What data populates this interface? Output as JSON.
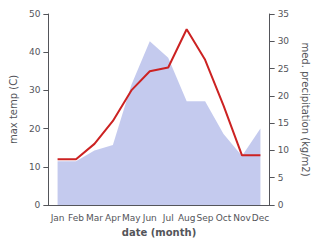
{
  "chart_data": {
    "type": "line",
    "xlabel": "date (month)",
    "ylabel": "max temp (C)",
    "y2label": "med. precipitation (kg/m2)",
    "categories": [
      "Jan",
      "Feb",
      "Mar",
      "Apr",
      "May",
      "Jun",
      "Jul",
      "Aug",
      "Sep",
      "Oct",
      "Nov",
      "Dec"
    ],
    "series": [
      {
        "type": "area",
        "axis": "y2",
        "color": "#b0b8e8",
        "values": [
          8,
          8,
          10,
          11,
          22,
          30,
          27,
          19,
          19,
          13,
          9,
          14
        ]
      },
      {
        "type": "line",
        "color": "#cc2222",
        "values": [
          12,
          12,
          16,
          22,
          30,
          35,
          36,
          46,
          38,
          26,
          13,
          13
        ]
      }
    ],
    "ylim": [
      0,
      50
    ],
    "yticks": [
      0,
      10,
      20,
      30,
      40,
      50
    ],
    "y2lim": [
      0,
      35
    ],
    "y2ticks": [
      0,
      5,
      10,
      15,
      20,
      25,
      30,
      35
    ],
    "grid": false
  }
}
